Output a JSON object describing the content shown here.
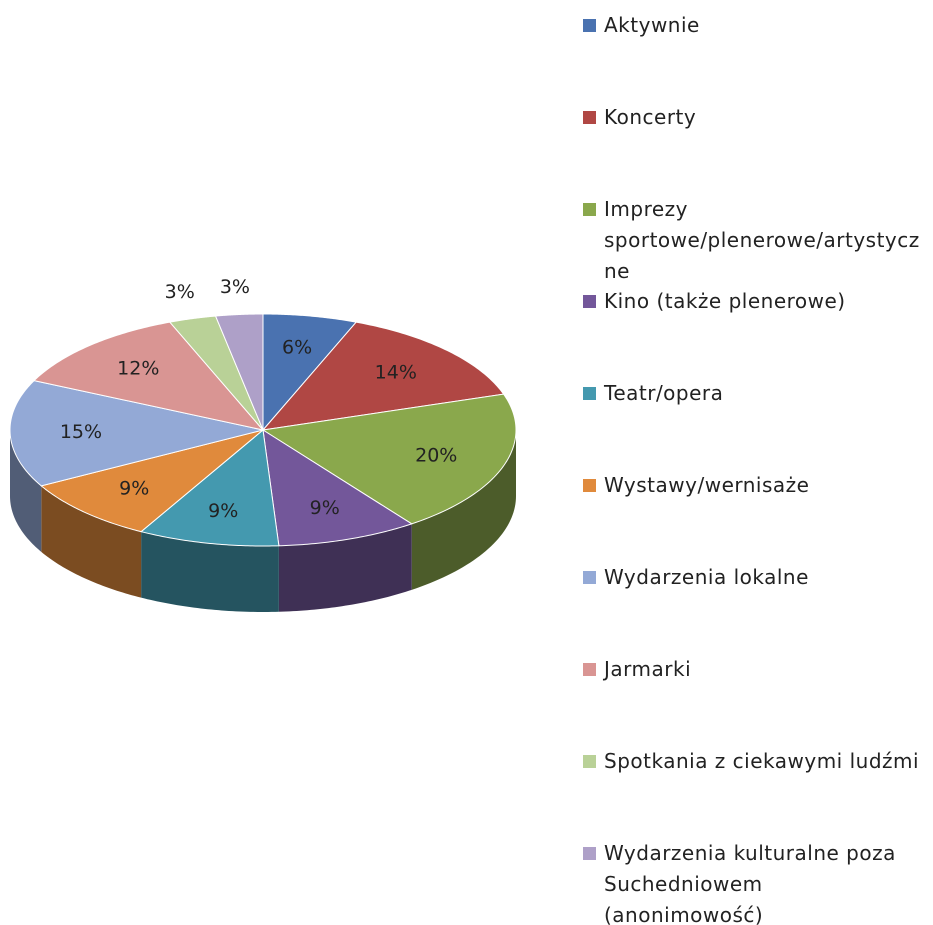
{
  "chart_data": {
    "type": "pie",
    "categories": [
      "Aktywnie",
      "Koncerty",
      "Imprezy sportowe/plenerowe/artystyczne",
      "Kino (także plenerowe)",
      "Teatr/opera",
      "Wystawy/wernisaże",
      "Wydarzenia lokalne",
      "Jarmarki",
      "Spotkania z ciekawymi ludźmi",
      "Wydarzenia kulturalne poza Suchedniowem (anonimowość)"
    ],
    "values": [
      6,
      14,
      20,
      9,
      9,
      9,
      15,
      12,
      3,
      3
    ],
    "value_labels": [
      "6%",
      "14%",
      "20%",
      "9%",
      "9%",
      "9%",
      "15%",
      "12%",
      "3%",
      "3%"
    ],
    "colors": [
      "#4a72b0",
      "#b04744",
      "#8aa84c",
      "#73579a",
      "#4499af",
      "#e08a3c",
      "#93a9d6",
      "#d99593",
      "#b9d197",
      "#aea0c8"
    ],
    "legend": "right"
  }
}
